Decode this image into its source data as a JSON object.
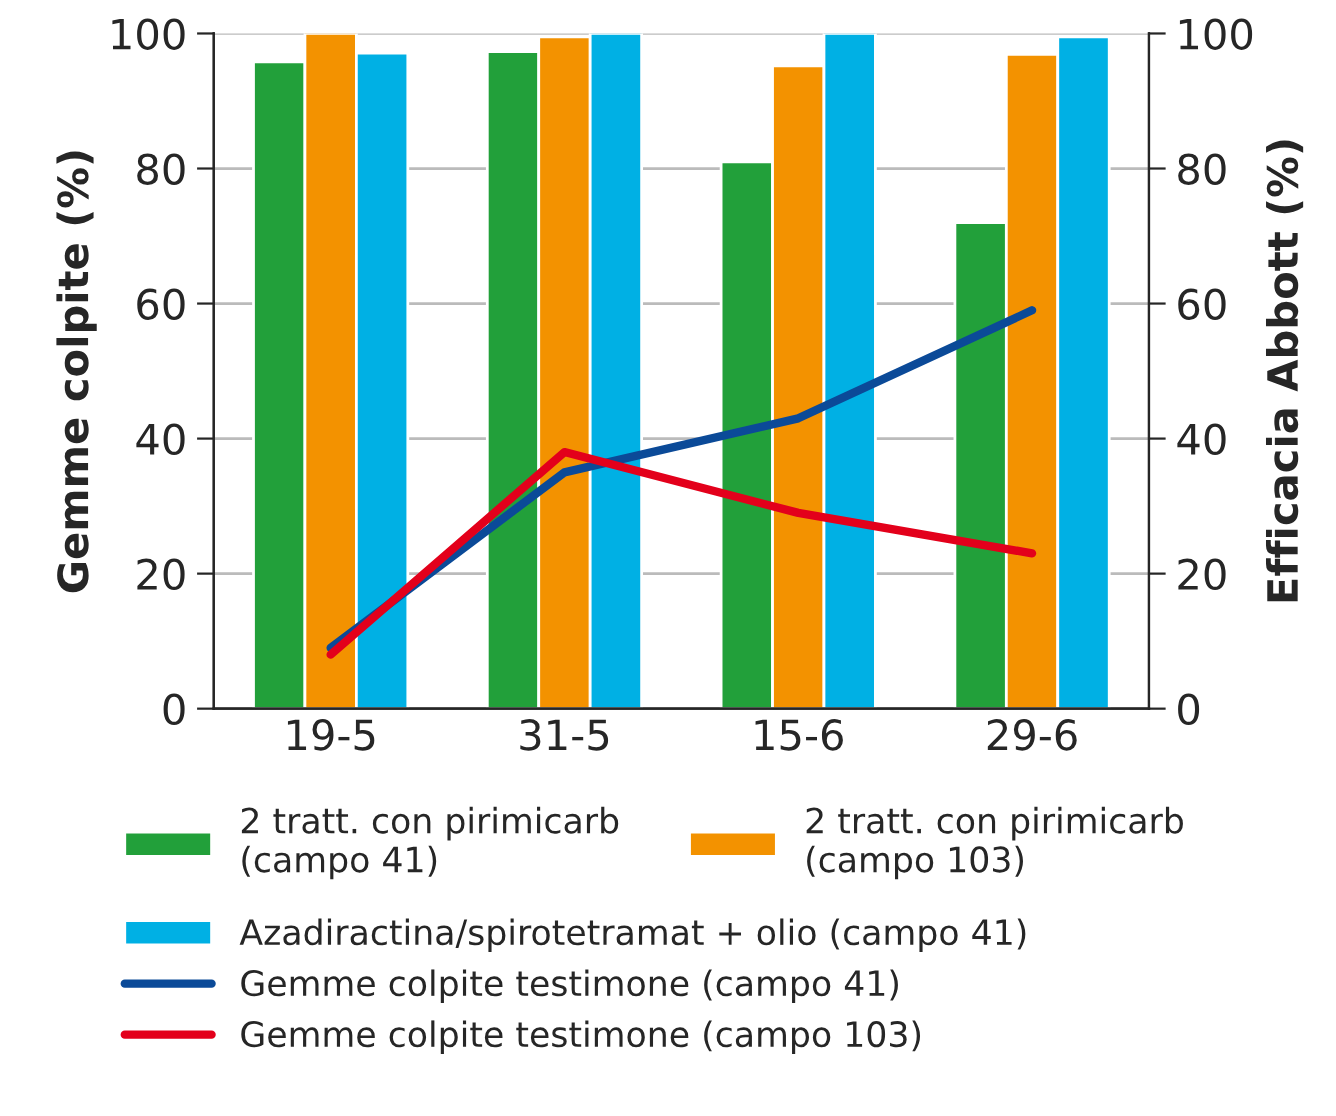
{
  "chart_data": {
    "type": "bar",
    "ylabel": "Gemme colpite (%)",
    "y2label": "Efficacia Abbott (%)",
    "categories": [
      "19-5",
      "31-5",
      "15-6",
      "29-6"
    ],
    "series": [
      {
        "name": "2 tratt. con pirimicarb\n(campo 41)",
        "color": "#22a03a",
        "values": [
          95.8,
          97.3,
          81,
          72
        ],
        "axis": "y2"
      },
      {
        "name": "2 tratt. con pirimicarb\n(campo 103)",
        "color": "#f39200",
        "values": [
          100,
          99.5,
          95.2,
          96.9
        ],
        "axis": "y2"
      },
      {
        "name": "Azadiractina/spirotetramat + olio (campo 41)",
        "color": "#00b0e4",
        "values": [
          97.1,
          100,
          100,
          99.5
        ],
        "axis": "y2"
      },
      {
        "type": "line",
        "name": "Gemme colpite testimone (campo 41)",
        "color": "#0b4a98",
        "values": [
          9,
          35,
          43,
          59
        ],
        "axis": "y"
      },
      {
        "type": "line",
        "name": "Gemme colpite testimone (campo 103)",
        "color": "#e3001b",
        "values": [
          8,
          38,
          29,
          23
        ],
        "axis": "y"
      }
    ],
    "ylim": [
      0,
      100
    ],
    "yticks": [
      0,
      20,
      40,
      60,
      80,
      100
    ],
    "y2lim": [
      0,
      100
    ],
    "y2ticks": [
      0,
      20,
      40,
      60,
      80,
      100
    ],
    "grid": "y",
    "legend": "bottom",
    "marker": "none",
    "line_style": "solid"
  }
}
